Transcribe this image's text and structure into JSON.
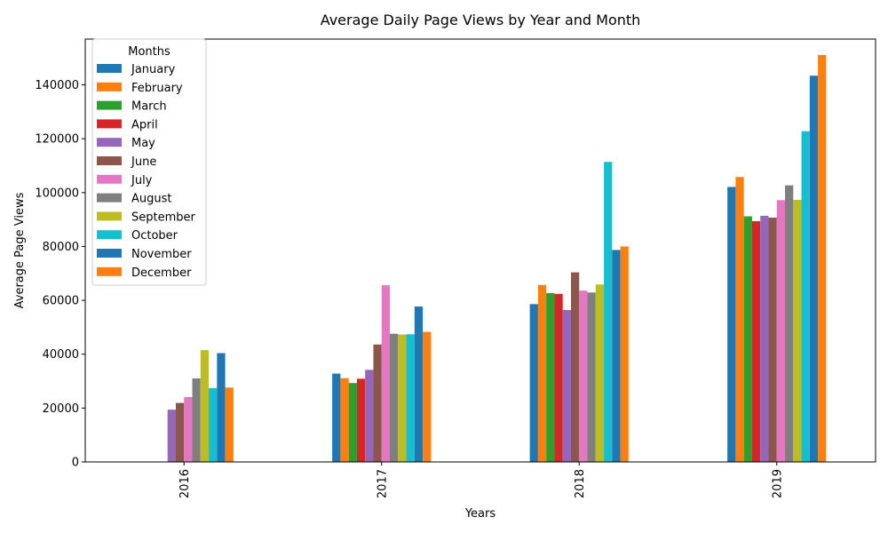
{
  "chart_data": {
    "type": "bar",
    "title": "Average Daily Page Views by Year and Month",
    "xlabel": "Years",
    "ylabel": "Average Page Views",
    "categories": [
      "2016",
      "2017",
      "2018",
      "2019"
    ],
    "ylim": [
      0,
      157000
    ],
    "yticks": [
      0,
      20000,
      40000,
      60000,
      80000,
      100000,
      120000,
      140000
    ],
    "ytick_labels": [
      "0",
      "20000",
      "40000",
      "60000",
      "80000",
      "100000",
      "120000",
      "140000"
    ],
    "legend_title": "Months",
    "legend_position": "top-left",
    "grid": false,
    "series": [
      {
        "name": "January",
        "color": "#1f77b4",
        "values": [
          null,
          32800,
          58600,
          102100
        ]
      },
      {
        "name": "February",
        "color": "#ff7f0e",
        "values": [
          null,
          31100,
          65700,
          105800
        ]
      },
      {
        "name": "March",
        "color": "#2ca02c",
        "values": [
          null,
          29300,
          62700,
          91200
        ]
      },
      {
        "name": "April",
        "color": "#d62728",
        "values": [
          null,
          30900,
          62400,
          89400
        ]
      },
      {
        "name": "May",
        "color": "#9467bd",
        "values": [
          19400,
          34200,
          56400,
          91400
        ]
      },
      {
        "name": "June",
        "color": "#8c564b",
        "values": [
          21900,
          43600,
          70400,
          90700
        ]
      },
      {
        "name": "July",
        "color": "#e377c2",
        "values": [
          24100,
          65600,
          63600,
          97200
        ]
      },
      {
        "name": "August",
        "color": "#7f7f7f",
        "values": [
          31000,
          47600,
          62900,
          102700
        ]
      },
      {
        "name": "September",
        "color": "#bcbd22",
        "values": [
          41500,
          47300,
          65900,
          97300
        ]
      },
      {
        "name": "October",
        "color": "#17becf",
        "values": [
          27400,
          47400,
          111400,
          122800
        ]
      },
      {
        "name": "November",
        "color": "#1f77b4",
        "values": [
          40400,
          57700,
          78700,
          143400
        ]
      },
      {
        "name": "December",
        "color": "#ff7f0e",
        "values": [
          27600,
          48300,
          80000,
          151100
        ]
      }
    ]
  }
}
